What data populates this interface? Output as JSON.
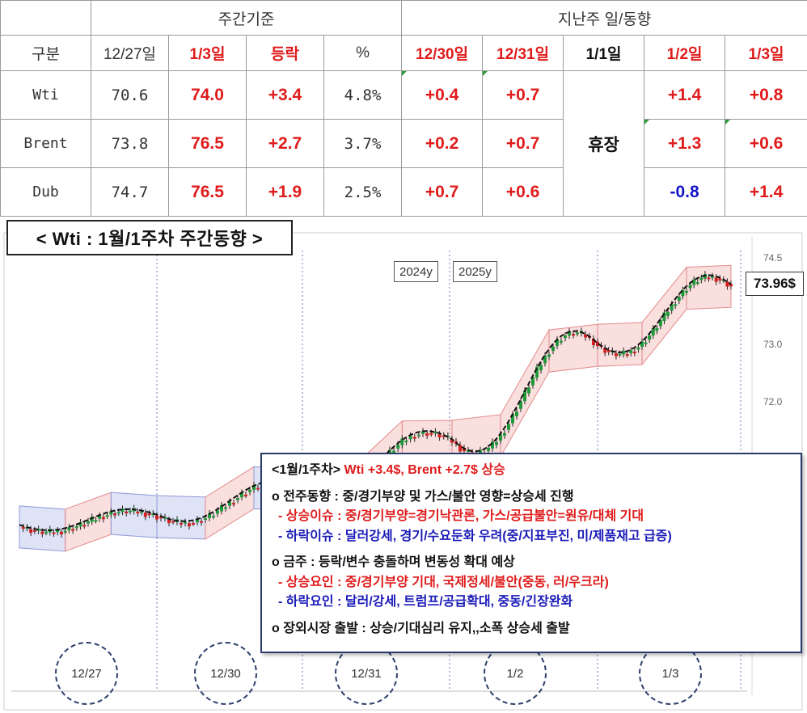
{
  "table": {
    "group_headers": {
      "weekly": "주간기준",
      "daily": "지난주 일/동향"
    },
    "col_headers": {
      "category": "구분",
      "prev_date": "12/27일",
      "cur_date": "1/3일",
      "change": "등락",
      "pct": "%",
      "d1": "12/30일",
      "d2": "12/31일",
      "d3": "1/1일",
      "d4": "1/2일",
      "d5": "1/3일"
    },
    "holiday": "휴장",
    "rows": [
      {
        "name": "Wti",
        "prev": "70.6",
        "cur": "74.0",
        "change": "+3.4",
        "pct": "4.8%",
        "d1": "+0.4",
        "d2": "+0.7",
        "d4": "+1.4",
        "d5": "+0.8"
      },
      {
        "name": "Brent",
        "prev": "73.8",
        "cur": "76.5",
        "change": "+2.7",
        "pct": "3.7%",
        "d1": "+0.2",
        "d2": "+0.7",
        "d4": "+1.3",
        "d5": "+0.6"
      },
      {
        "name": "Dub",
        "prev": "74.7",
        "cur": "76.5",
        "change": "+1.9",
        "pct": "2.5%",
        "d1": "+0.7",
        "d2": "+0.6",
        "d4": "-0.8",
        "d5": "+1.4"
      }
    ]
  },
  "chart": {
    "title": "< Wti : 1월/1주차 주간동향 >",
    "year_tags": [
      "2024y",
      "2025y"
    ],
    "last_price": "73.96$",
    "y_ticks": [
      "74.5",
      "73.0",
      "72.0"
    ],
    "date_labels": [
      "12/27",
      "12/30",
      "12/31",
      "1/2",
      "1/3"
    ],
    "colors": {
      "up": "#1f9a3a",
      "down": "#d42020",
      "ma": "#111111",
      "up_channel": "#f4b8b8",
      "down_channel": "#b8c0ec"
    }
  },
  "chart_data": {
    "type": "line",
    "title": "< Wti : 1월/1주차 주간동향 >",
    "xlabel": "",
    "ylabel": "",
    "x": [
      "12/27",
      "12/30",
      "12/31",
      "1/2",
      "1/3"
    ],
    "series": [
      {
        "values": [
          70.6,
          71.0,
          71.7,
          73.1,
          73.96
        ]
      }
    ],
    "ylim": [
      70.0,
      74.6
    ],
    "last_value": 73.96,
    "grid": false
  },
  "commentary": {
    "headline_prefix": "<1월/1주차>",
    "headline": "Wti +3.4$, Brent +2.7$ 상승",
    "prev_week_title": "o 전주동향 : 중/경기부양 및 가스/불안 영향=상승세 진행",
    "prev_week_up": "- 상승이슈 : 중/경기부양=경기낙관론, 가스/공급불안=원유/대체 기대",
    "prev_week_down": "- 하락이슈 : 달러강세, 경기/수요둔화 우려(중/지표부진, 미/제품재고 급증)",
    "this_week_title": "o 금주 : 등락/변수 충돌하며 변동성 확대 예상",
    "this_week_up": "- 상승요인 : 중/경기부양 기대, 국제정세/불안(중동, 러/우크라)",
    "this_week_down": "- 하락요인 : 달러/강세, 트럼프/공급확대, 중동/긴장완화",
    "overseas": "o 장외시장 출발 : 상승/기대심리 유지,,소폭 상승세 출발"
  }
}
